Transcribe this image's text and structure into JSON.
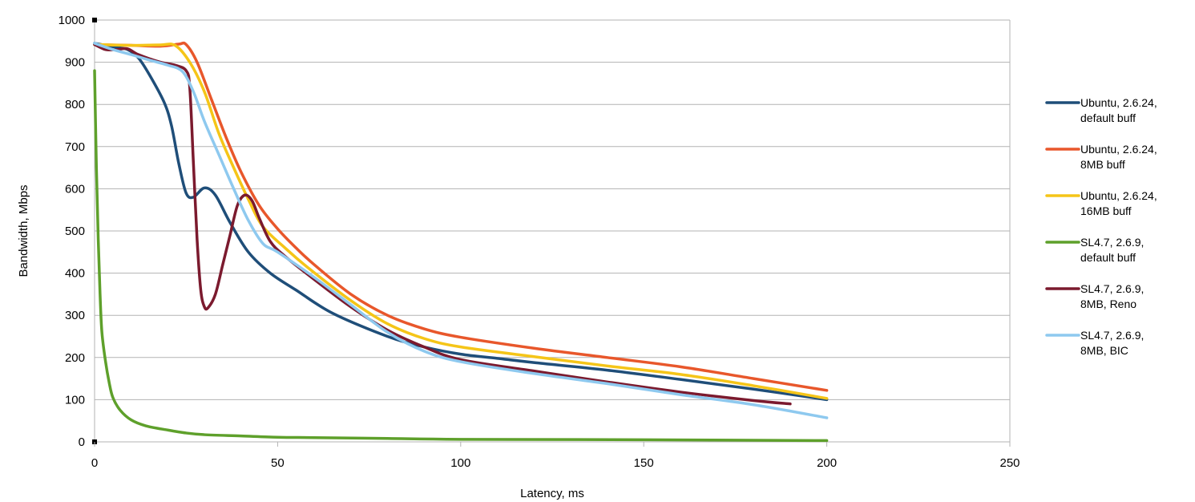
{
  "chart_data": {
    "type": "line",
    "title": "",
    "xlabel": "Latency, ms",
    "ylabel": "Bandwidth, Mbps",
    "xlim": [
      0,
      250
    ],
    "ylim": [
      0,
      1000
    ],
    "x_ticks": [
      0,
      50,
      100,
      150,
      200,
      250
    ],
    "y_ticks": [
      0,
      100,
      200,
      300,
      400,
      500,
      600,
      700,
      800,
      900,
      1000
    ],
    "grid": "horizontal",
    "legend_position": "right",
    "series": [
      {
        "name": "Ubuntu, 2.6.24, default buff",
        "legend_lines": [
          "Ubuntu, 2.6.24,",
          "default buff"
        ],
        "color": "#1f4e79",
        "points": [
          [
            0,
            945
          ],
          [
            3,
            940
          ],
          [
            6,
            935
          ],
          [
            9,
            930
          ],
          [
            12,
            910
          ],
          [
            15,
            870
          ],
          [
            19,
            805
          ],
          [
            21,
            750
          ],
          [
            23,
            660
          ],
          [
            25,
            590
          ],
          [
            27,
            580
          ],
          [
            30,
            602
          ],
          [
            33,
            585
          ],
          [
            37,
            520
          ],
          [
            42,
            450
          ],
          [
            48,
            400
          ],
          [
            55,
            360
          ],
          [
            65,
            305
          ],
          [
            80,
            250
          ],
          [
            90,
            225
          ],
          [
            100,
            208
          ],
          [
            110,
            198
          ],
          [
            120,
            188
          ],
          [
            140,
            170
          ],
          [
            160,
            148
          ],
          [
            180,
            125
          ],
          [
            200,
            100
          ]
        ]
      },
      {
        "name": "Ubuntu, 2.6.24, 8MB buff",
        "legend_lines": [
          "Ubuntu, 2.6.24,",
          "8MB buff"
        ],
        "color": "#e8572b",
        "points": [
          [
            0,
            942
          ],
          [
            10,
            940
          ],
          [
            18,
            938
          ],
          [
            23,
            943
          ],
          [
            25,
            942
          ],
          [
            28,
            900
          ],
          [
            32,
            810
          ],
          [
            36,
            720
          ],
          [
            40,
            640
          ],
          [
            45,
            560
          ],
          [
            50,
            505
          ],
          [
            55,
            460
          ],
          [
            60,
            420
          ],
          [
            70,
            350
          ],
          [
            80,
            300
          ],
          [
            90,
            268
          ],
          [
            100,
            248
          ],
          [
            120,
            222
          ],
          [
            140,
            200
          ],
          [
            160,
            178
          ],
          [
            180,
            150
          ],
          [
            200,
            122
          ]
        ]
      },
      {
        "name": "Ubuntu, 2.6.24, 16MB buff",
        "legend_lines": [
          "Ubuntu, 2.6.24,",
          "16MB buff"
        ],
        "color": "#f5c518",
        "points": [
          [
            0,
            942
          ],
          [
            10,
            940
          ],
          [
            18,
            941
          ],
          [
            22,
            940
          ],
          [
            26,
            900
          ],
          [
            30,
            830
          ],
          [
            34,
            730
          ],
          [
            38,
            650
          ],
          [
            42,
            575
          ],
          [
            46,
            510
          ],
          [
            52,
            460
          ],
          [
            58,
            415
          ],
          [
            70,
            335
          ],
          [
            80,
            280
          ],
          [
            90,
            245
          ],
          [
            100,
            225
          ],
          [
            120,
            202
          ],
          [
            140,
            180
          ],
          [
            160,
            160
          ],
          [
            180,
            133
          ],
          [
            200,
            103
          ]
        ]
      },
      {
        "name": "SL4.7, 2.6.9, default buff",
        "legend_lines": [
          "SL4.7, 2.6.9,",
          "default buff"
        ],
        "color": "#5ea02b",
        "points": [
          [
            0,
            880
          ],
          [
            0.5,
            650
          ],
          [
            1,
            480
          ],
          [
            1.5,
            350
          ],
          [
            2,
            260
          ],
          [
            3,
            190
          ],
          [
            4,
            140
          ],
          [
            5,
            105
          ],
          [
            7,
            75
          ],
          [
            10,
            52
          ],
          [
            14,
            38
          ],
          [
            20,
            28
          ],
          [
            25,
            21
          ],
          [
            30,
            17
          ],
          [
            40,
            14
          ],
          [
            50,
            11
          ],
          [
            60,
            10
          ],
          [
            80,
            8
          ],
          [
            100,
            6
          ],
          [
            150,
            5
          ],
          [
            200,
            3
          ]
        ]
      },
      {
        "name": "SL4.7, 2.6.9, 8MB, Reno",
        "legend_lines": [
          "SL4.7, 2.6.9,",
          "8MB, Reno"
        ],
        "color": "#7b1a2e",
        "points": [
          [
            0,
            942
          ],
          [
            3,
            930
          ],
          [
            6,
            930
          ],
          [
            9,
            932
          ],
          [
            12,
            918
          ],
          [
            18,
            900
          ],
          [
            22,
            893
          ],
          [
            25,
            880
          ],
          [
            26,
            840
          ],
          [
            27,
            660
          ],
          [
            28,
            480
          ],
          [
            29,
            360
          ],
          [
            30,
            320
          ],
          [
            31,
            318
          ],
          [
            33,
            350
          ],
          [
            35,
            420
          ],
          [
            37,
            490
          ],
          [
            39,
            560
          ],
          [
            41,
            585
          ],
          [
            43,
            572
          ],
          [
            45,
            530
          ],
          [
            48,
            475
          ],
          [
            52,
            440
          ],
          [
            60,
            385
          ],
          [
            70,
            320
          ],
          [
            80,
            265
          ],
          [
            90,
            225
          ],
          [
            100,
            195
          ],
          [
            120,
            168
          ],
          [
            140,
            142
          ],
          [
            160,
            118
          ],
          [
            180,
            98
          ],
          [
            190,
            90
          ]
        ]
      },
      {
        "name": "SL4.7, 2.6.9, 8MB, BIC",
        "legend_lines": [
          "SL4.7, 2.6.9,",
          "8MB, BIC"
        ],
        "color": "#8ec9ef",
        "points": [
          [
            0,
            945
          ],
          [
            5,
            930
          ],
          [
            10,
            918
          ],
          [
            15,
            905
          ],
          [
            20,
            893
          ],
          [
            24,
            878
          ],
          [
            27,
            830
          ],
          [
            30,
            760
          ],
          [
            34,
            680
          ],
          [
            38,
            600
          ],
          [
            42,
            525
          ],
          [
            46,
            470
          ],
          [
            50,
            450
          ],
          [
            60,
            390
          ],
          [
            70,
            325
          ],
          [
            80,
            260
          ],
          [
            90,
            215
          ],
          [
            100,
            190
          ],
          [
            120,
            162
          ],
          [
            140,
            138
          ],
          [
            160,
            112
          ],
          [
            180,
            88
          ],
          [
            200,
            57
          ]
        ]
      }
    ]
  }
}
